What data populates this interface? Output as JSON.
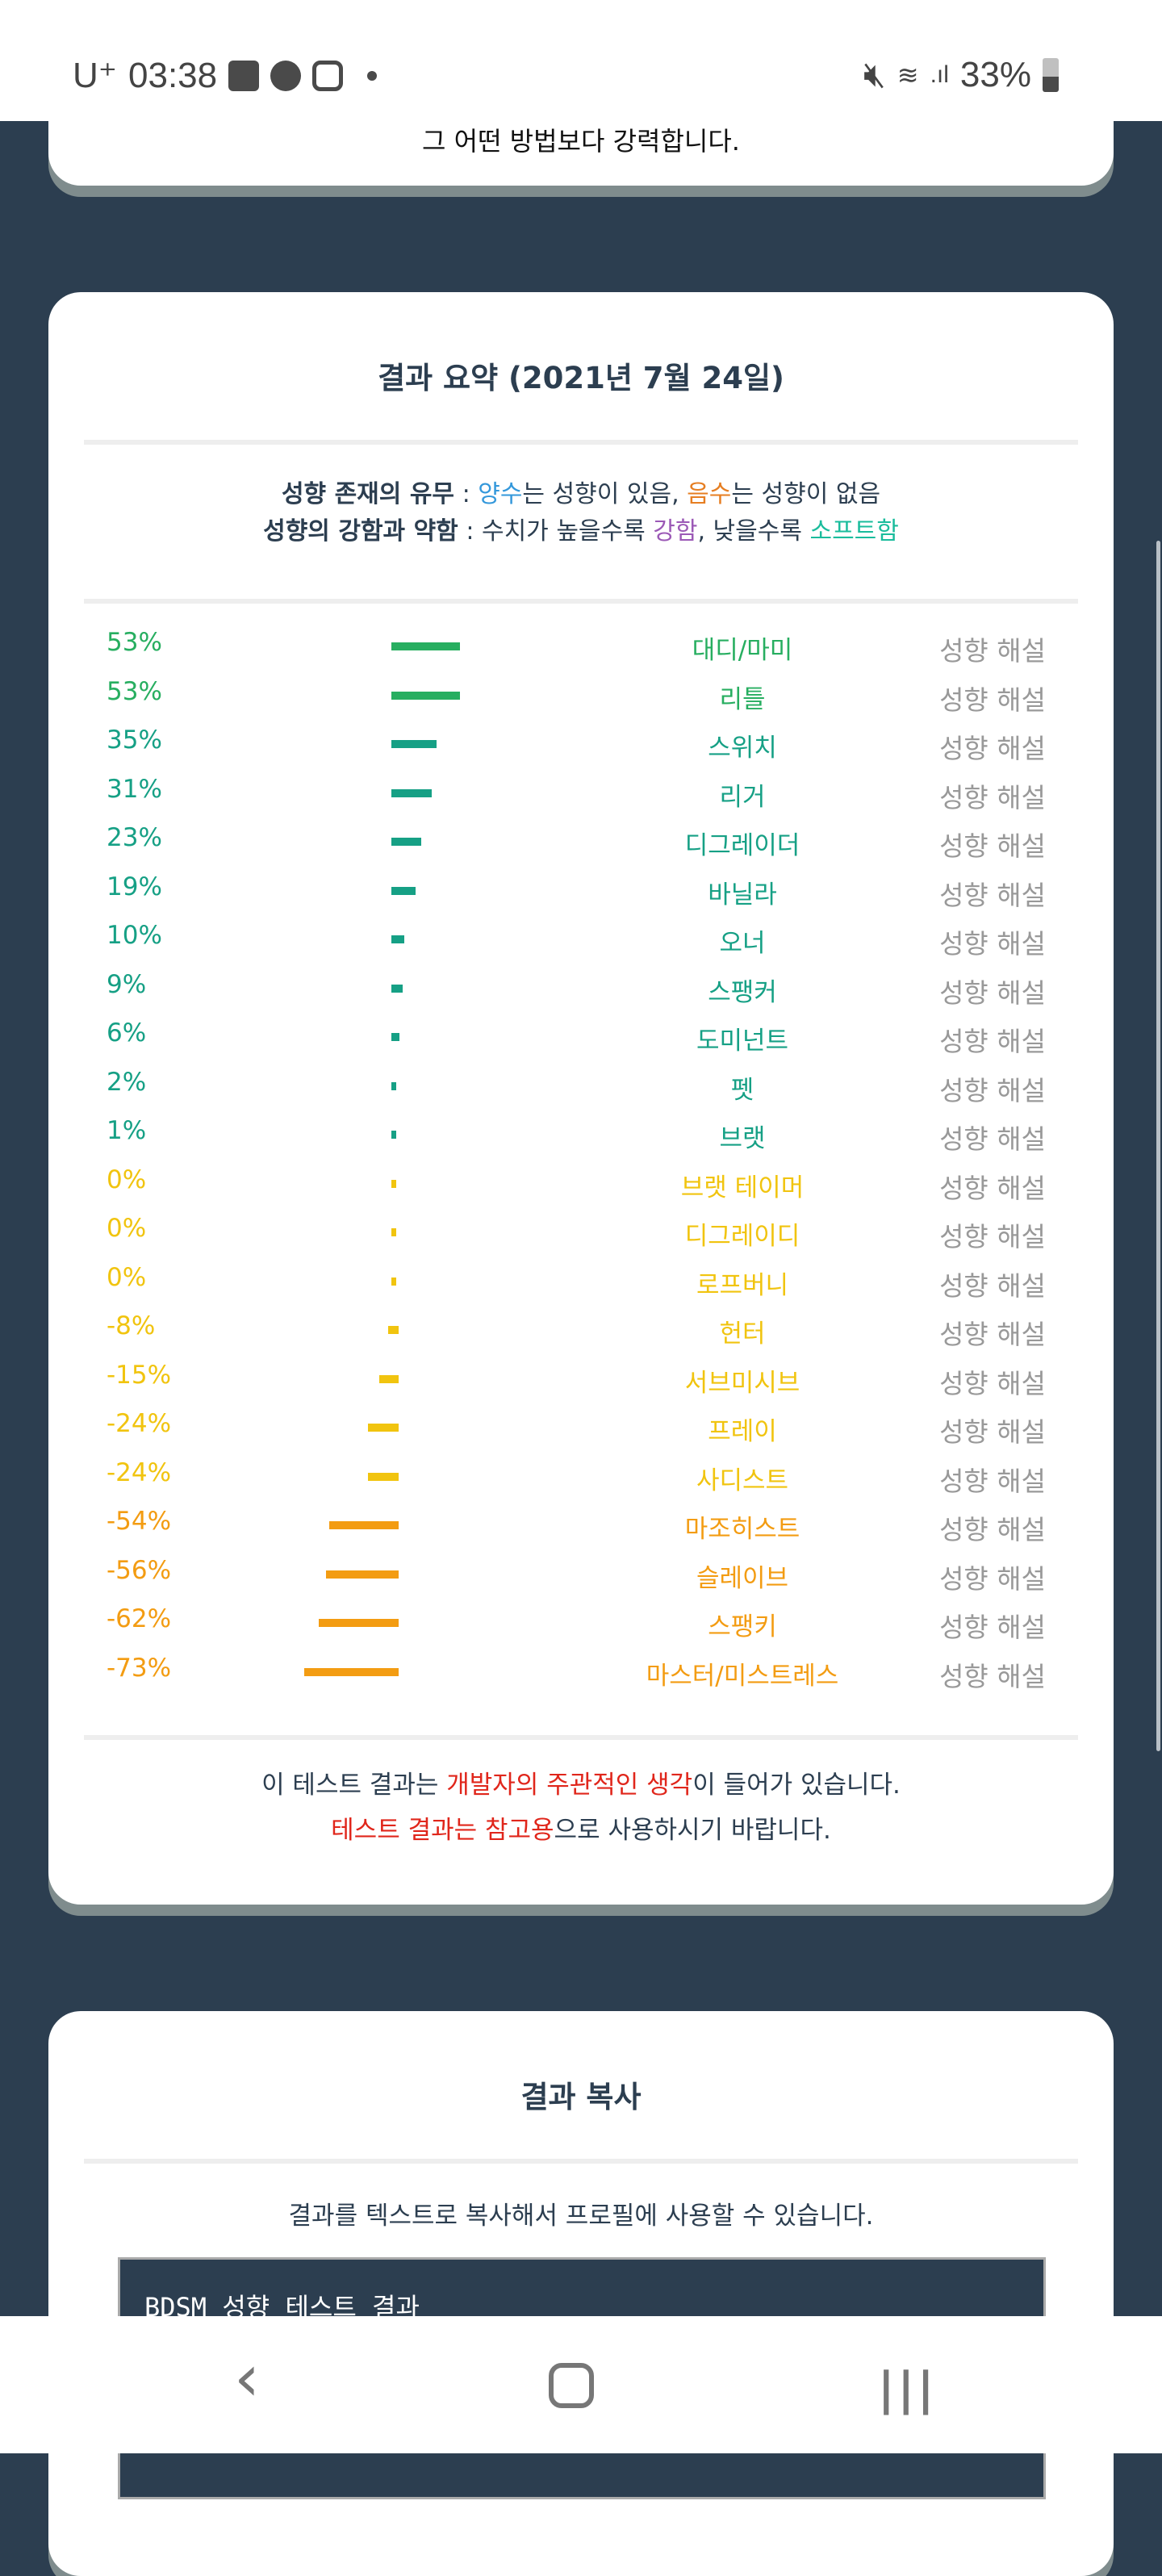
{
  "status_bar": {
    "carrier": "U⁺",
    "time": "03:38",
    "battery": "33%"
  },
  "intro_card": {
    "text": "그 어떤 방법보다 강력합니다."
  },
  "summary": {
    "title": "결과 요약 (2021년 7월 24일)",
    "legend1": {
      "label": "성향 존재의 유무",
      "sep": " : ",
      "positive": "양수",
      "mid1": "는 성향이 있음, ",
      "negative": "음수",
      "mid2": "는 성향이 없음"
    },
    "legend2": {
      "label": "성향의 강함과 약함",
      "sep": " : ",
      "pre": "수치가 높을수록 ",
      "strong": "강함",
      "mid": ", 낮을수록 ",
      "soft": "소프트함"
    },
    "link_label": "성향 해설",
    "items": [
      {
        "pct": "53%",
        "value": 53,
        "name": "대디/마미",
        "color": "#27ae60"
      },
      {
        "pct": "53%",
        "value": 53,
        "name": "리틀",
        "color": "#27ae60"
      },
      {
        "pct": "35%",
        "value": 35,
        "name": "스위치",
        "color": "#16a085"
      },
      {
        "pct": "31%",
        "value": 31,
        "name": "리거",
        "color": "#16a085"
      },
      {
        "pct": "23%",
        "value": 23,
        "name": "디그레이더",
        "color": "#16a085"
      },
      {
        "pct": "19%",
        "value": 19,
        "name": "바닐라",
        "color": "#16a085"
      },
      {
        "pct": "10%",
        "value": 10,
        "name": "오너",
        "color": "#16a085"
      },
      {
        "pct": "9%",
        "value": 9,
        "name": "스팽커",
        "color": "#16a085"
      },
      {
        "pct": "6%",
        "value": 6,
        "name": "도미넌트",
        "color": "#16a085"
      },
      {
        "pct": "2%",
        "value": 2,
        "name": "펫",
        "color": "#16a085"
      },
      {
        "pct": "1%",
        "value": 1,
        "name": "브랫",
        "color": "#16a085"
      },
      {
        "pct": "0%",
        "value": 0,
        "name": "브랫 테이머",
        "color": "#f1c40f"
      },
      {
        "pct": "0%",
        "value": 0,
        "name": "디그레이디",
        "color": "#f1c40f"
      },
      {
        "pct": "0%",
        "value": 0,
        "name": "로프버니",
        "color": "#f1c40f"
      },
      {
        "pct": "-8%",
        "value": -8,
        "name": "헌터",
        "color": "#f1c40f"
      },
      {
        "pct": "-15%",
        "value": -15,
        "name": "서브미시브",
        "color": "#f1c40f"
      },
      {
        "pct": "-24%",
        "value": -24,
        "name": "프레이",
        "color": "#f1c40f"
      },
      {
        "pct": "-24%",
        "value": -24,
        "name": "사디스트",
        "color": "#f1c40f"
      },
      {
        "pct": "-54%",
        "value": -54,
        "name": "마조히스트",
        "color": "#f39c12"
      },
      {
        "pct": "-56%",
        "value": -56,
        "name": "슬레이브",
        "color": "#f39c12"
      },
      {
        "pct": "-62%",
        "value": -62,
        "name": "스팽키",
        "color": "#f39c12"
      },
      {
        "pct": "-73%",
        "value": -73,
        "name": "마스터/미스트레스",
        "color": "#f39c12"
      }
    ],
    "disclaimer1": {
      "a": "이 테스트 결과는 ",
      "b": "개발자의 주관적인 생각",
      "c": "이 들어가 있습니다."
    },
    "disclaimer2": {
      "a": "테스트 결과는 참고용",
      "b": "으로 사용하시기 바랍니다."
    }
  },
  "copy": {
    "title": "결과 복사",
    "desc": "결과를 텍스트로 복사해서 프로필에 사용할 수 있습니다.",
    "box_text": "BDSM  성향  테스트  결과"
  },
  "nav": {
    "back": "‹",
    "home": "○",
    "recents": "|||"
  }
}
